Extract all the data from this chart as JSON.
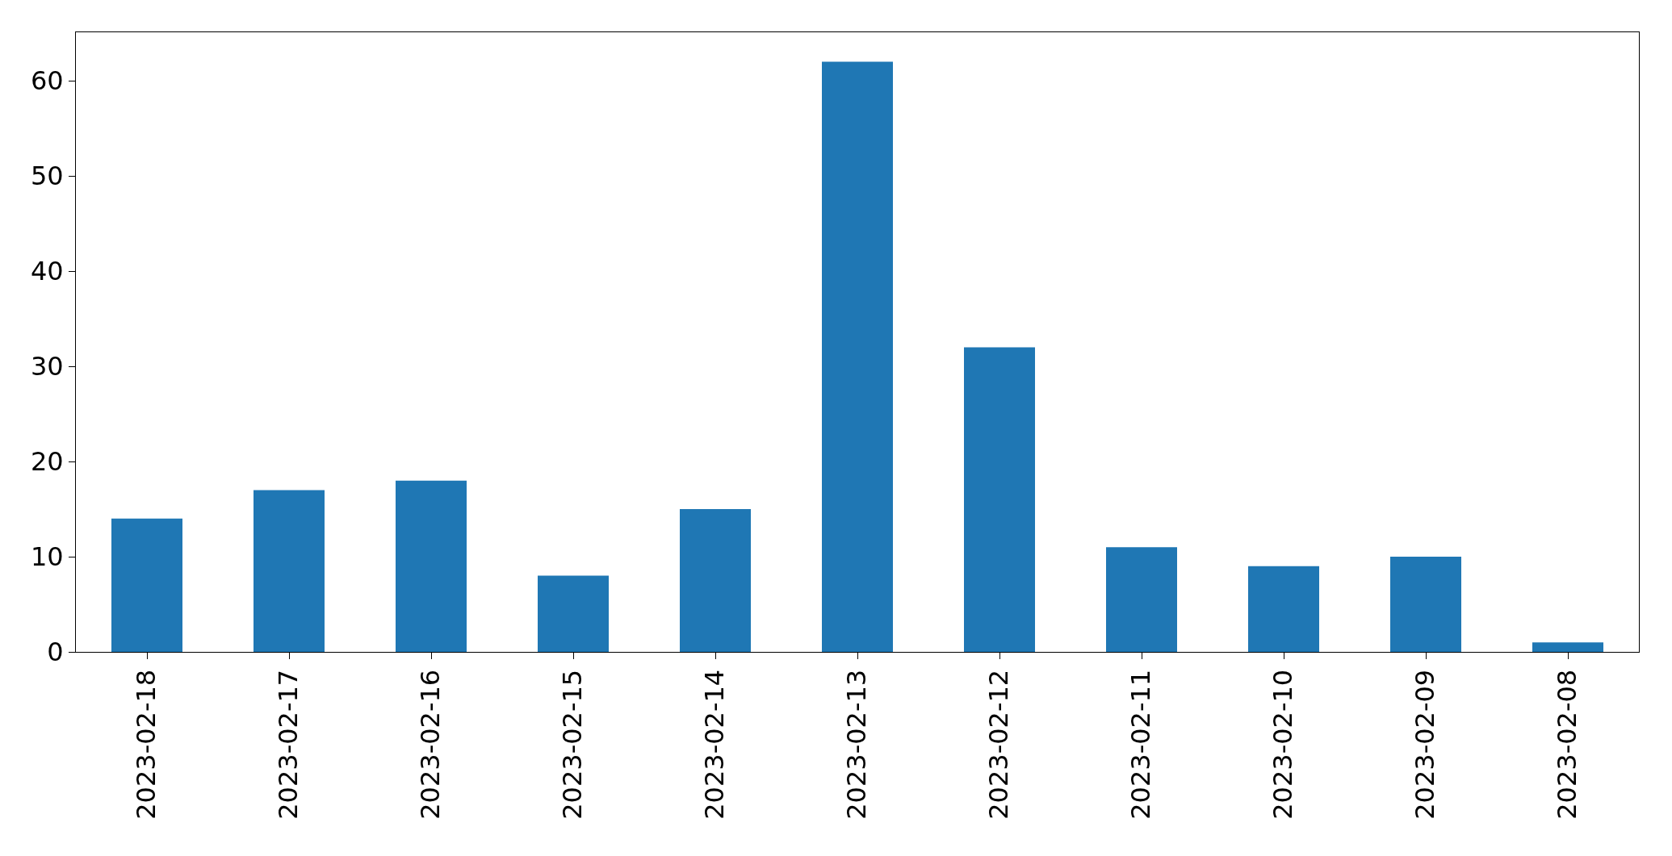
{
  "chart_data": {
    "type": "bar",
    "categories": [
      "2023-02-18",
      "2023-02-17",
      "2023-02-16",
      "2023-02-15",
      "2023-02-14",
      "2023-02-13",
      "2023-02-12",
      "2023-02-11",
      "2023-02-10",
      "2023-02-09",
      "2023-02-08"
    ],
    "values": [
      14,
      17,
      18,
      8,
      15,
      62,
      32,
      11,
      9,
      10,
      1
    ],
    "color": "#1f77b4",
    "ylim": [
      0,
      65.1
    ],
    "yticks": [
      0,
      10,
      20,
      30,
      40,
      50,
      60
    ]
  }
}
